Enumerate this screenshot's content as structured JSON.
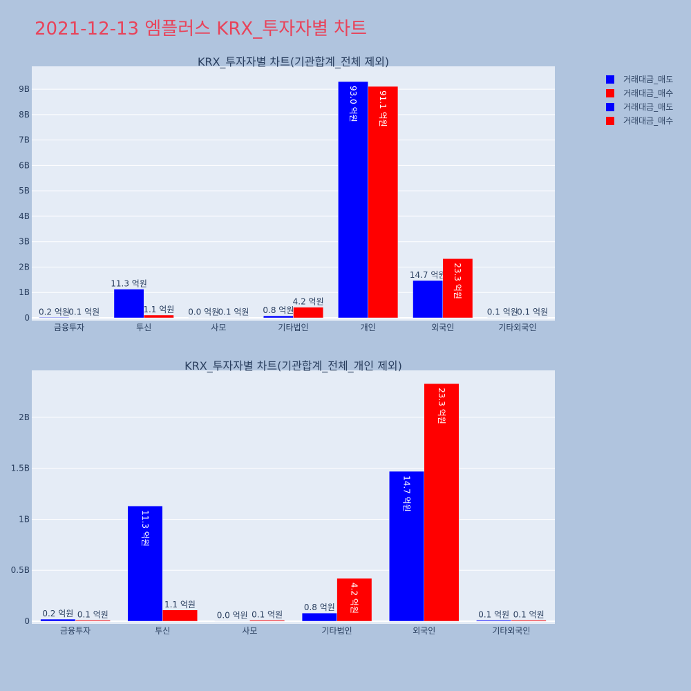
{
  "page": {
    "title": "2021-12-13 엠플러스 KRX_투자자별 차트",
    "background": "#b0c4de",
    "plot_background": "#e5ecf6",
    "title_color": "#e8435a"
  },
  "legend": {
    "placement": "top-right",
    "items": [
      {
        "label": "거래대금_매도",
        "color": "#0000ff"
      },
      {
        "label": "거래대금_매수",
        "color": "#ff0000"
      },
      {
        "label": "거래대금_매도",
        "color": "#0000ff"
      },
      {
        "label": "거래대금_매수",
        "color": "#ff0000"
      }
    ]
  },
  "chart_data": [
    {
      "type": "bar",
      "title": "KRX_투자자별 차트(기관합계_전체 제외)",
      "categories": [
        "금융투자",
        "투신",
        "사모",
        "기타법인",
        "개인",
        "외국인",
        "기타외국인"
      ],
      "series": [
        {
          "name": "거래대금_매도",
          "color": "#0000ff",
          "values": [
            20000000,
            1130000000,
            0,
            80000000,
            9300000000,
            1470000000,
            10000000
          ],
          "labels": [
            "0.2 억원",
            "11.3 억원",
            "0.0 억원",
            "0.8 억원",
            "93.0 억원",
            "14.7 억원",
            "0.1 억원"
          ]
        },
        {
          "name": "거래대금_매수",
          "color": "#ff0000",
          "values": [
            10000000,
            110000000,
            10000000,
            420000000,
            9110000000,
            2330000000,
            10000000
          ],
          "labels": [
            "0.1 억원",
            "1.1 억원",
            "0.1 억원",
            "4.2 억원",
            "91.1 억원",
            "23.3 억원",
            "0.1 억원"
          ]
        }
      ],
      "ylim": [
        0,
        9900000000
      ],
      "yticks": [
        0,
        1000000000,
        2000000000,
        3000000000,
        4000000000,
        5000000000,
        6000000000,
        7000000000,
        8000000000,
        9000000000
      ],
      "ytick_labels": [
        "0",
        "1B",
        "2B",
        "3B",
        "4B",
        "5B",
        "6B",
        "7B",
        "8B",
        "9B"
      ],
      "grid": true,
      "xlabel": "",
      "ylabel": ""
    },
    {
      "type": "bar",
      "title": "KRX_투자자별 차트(기관합계_전체_개인 제외)",
      "categories": [
        "금융투자",
        "투신",
        "사모",
        "기타법인",
        "외국인",
        "기타외국인"
      ],
      "series": [
        {
          "name": "거래대금_매도",
          "color": "#0000ff",
          "values": [
            20000000,
            1130000000,
            0,
            80000000,
            1470000000,
            10000000
          ],
          "labels": [
            "0.2 억원",
            "11.3 억원",
            "0.0 억원",
            "0.8 억원",
            "14.7 억원",
            "0.1 억원"
          ]
        },
        {
          "name": "거래대금_매수",
          "color": "#ff0000",
          "values": [
            10000000,
            110000000,
            10000000,
            420000000,
            2330000000,
            10000000
          ],
          "labels": [
            "0.1 억원",
            "1.1 억원",
            "0.1 억원",
            "4.2 억원",
            "23.3 억원",
            "0.1 억원"
          ]
        }
      ],
      "ylim": [
        0,
        2460000000
      ],
      "yticks": [
        0,
        500000000,
        1000000000,
        1500000000,
        2000000000
      ],
      "ytick_labels": [
        "0",
        "0.5B",
        "1B",
        "1.5B",
        "2B"
      ],
      "grid": true,
      "xlabel": "",
      "ylabel": ""
    }
  ]
}
